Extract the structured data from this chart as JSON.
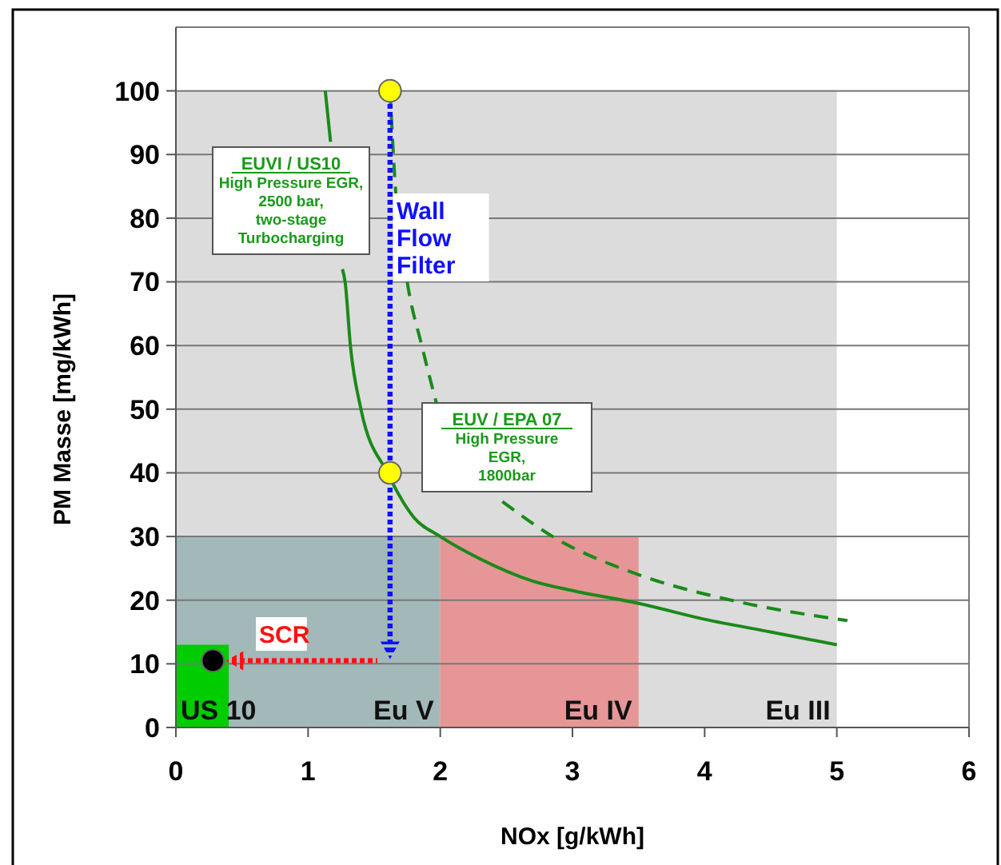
{
  "chart_data": {
    "type": "line",
    "xlabel": "NOx [g/kWh]",
    "ylabel": "PM Masse [mg/kWh]",
    "xlim": [
      0,
      6
    ],
    "ylim": [
      0,
      110
    ],
    "xticks": [
      0,
      1,
      2,
      3,
      4,
      5,
      6
    ],
    "yticks": [
      0,
      10,
      20,
      30,
      40,
      50,
      60,
      70,
      80,
      90,
      100
    ],
    "grid": "y",
    "legend": false,
    "marker": "none",
    "series": [
      {
        "name": "Eu III",
        "type": "area",
        "color": "#dcdcdc",
        "x": [
          0,
          5
        ],
        "values": [
          100,
          100
        ]
      },
      {
        "name": "Eu V",
        "type": "area",
        "color": "#a3b8b9",
        "x": [
          0,
          2
        ],
        "values": [
          30,
          30
        ]
      },
      {
        "name": "Eu IV",
        "type": "area",
        "color": "#e69696",
        "x": [
          2,
          3.5
        ],
        "values": [
          30,
          30
        ]
      },
      {
        "name": "US 10",
        "type": "area",
        "color": "#00cc00",
        "x": [
          0,
          0.4
        ],
        "values": [
          13,
          13
        ]
      },
      {
        "color": "#1a8a1a",
        "line_style": "solid",
        "x": [
          1.13,
          1.17
        ],
        "values": [
          100,
          92
        ]
      },
      {
        "color": "#1a8a1a",
        "line_style": "solid",
        "x": [
          1.26,
          1.28,
          1.32,
          1.4,
          1.6,
          1.8,
          2,
          2.3,
          2.7,
          3,
          3.5,
          4,
          4.5,
          5
        ],
        "values": [
          72,
          70,
          60,
          50,
          40,
          33,
          30,
          26.5,
          23,
          21.5,
          19.5,
          17,
          15,
          13
        ]
      },
      {
        "color": "#1a8a1a",
        "line_style": "dashed",
        "x": [
          1.62,
          1.66,
          1.75,
          1.86,
          1.97
        ],
        "values": [
          100,
          85,
          70,
          60,
          51
        ]
      },
      {
        "color": "#1a8a1a",
        "line_style": "dashed",
        "x": [
          2.47,
          2.85,
          3.5,
          4.2,
          5.08
        ],
        "values": [
          35.5,
          30,
          24,
          20,
          16.8
        ]
      },
      {
        "type": "scatter",
        "color": "#ffff00",
        "marker": "circle",
        "x": [
          1.62,
          1.62
        ],
        "values": [
          100,
          40
        ]
      },
      {
        "type": "scatter",
        "color": "#000000",
        "marker": "circle",
        "x": [
          0.28
        ],
        "values": [
          10.5
        ]
      }
    ],
    "annotations": [
      "EUVI / US10\nHigh Pressure EGR,\n2500 bar,\ntwo-stage\nTurbocharging",
      "EUV / EPA 07\nHigh Pressure\nEGR,\n1800bar",
      "Wall\nFlow\nFilter",
      "SCR"
    ]
  }
}
